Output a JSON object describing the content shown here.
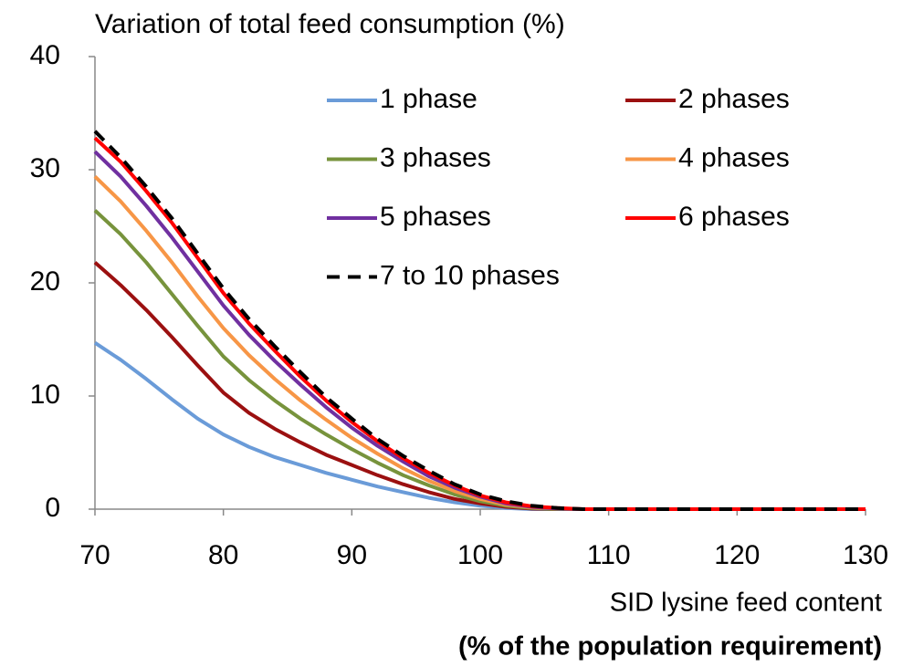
{
  "chart_data": {
    "type": "line",
    "title": "Variation of total feed consumption (%)",
    "xlabel": [
      "SID lysine  feed content",
      "(% of the population requirement)"
    ],
    "x": [
      70,
      72,
      74,
      76,
      78,
      80,
      82,
      84,
      86,
      88,
      90,
      92,
      94,
      96,
      98,
      100,
      102,
      104,
      106,
      108,
      110,
      115,
      120,
      125,
      130
    ],
    "xlim": [
      70,
      130
    ],
    "xticks": [
      70,
      80,
      90,
      100,
      110,
      120,
      130
    ],
    "ylim": [
      0,
      40
    ],
    "yticks": [
      0,
      10,
      20,
      30,
      40
    ],
    "legend": "top-right",
    "series": [
      {
        "name": "1 phase",
        "color": "#6a9bd8",
        "dashed": false,
        "values": [
          14.7,
          13.2,
          11.5,
          9.7,
          8.0,
          6.6,
          5.5,
          4.6,
          3.9,
          3.2,
          2.6,
          2.0,
          1.5,
          1.0,
          0.6,
          0.3,
          0.1,
          0,
          0,
          0,
          0,
          0,
          0,
          0,
          0
        ]
      },
      {
        "name": "2 phases",
        "color": "#9b1010",
        "dashed": false,
        "values": [
          21.8,
          19.8,
          17.6,
          15.2,
          12.7,
          10.3,
          8.5,
          7.1,
          5.9,
          4.8,
          3.9,
          3.0,
          2.2,
          1.5,
          0.9,
          0.5,
          0.2,
          0.05,
          0,
          0,
          0,
          0,
          0,
          0,
          0
        ]
      },
      {
        "name": "3 phases",
        "color": "#77933c",
        "dashed": false,
        "values": [
          26.4,
          24.3,
          21.8,
          19.0,
          16.2,
          13.5,
          11.4,
          9.6,
          8.0,
          6.6,
          5.3,
          4.1,
          3.0,
          2.1,
          1.3,
          0.7,
          0.3,
          0.1,
          0,
          0,
          0,
          0,
          0,
          0,
          0
        ]
      },
      {
        "name": "4 phases",
        "color": "#f79646",
        "dashed": false,
        "values": [
          29.4,
          27.2,
          24.6,
          21.8,
          18.8,
          16.0,
          13.6,
          11.5,
          9.6,
          7.9,
          6.3,
          4.9,
          3.6,
          2.5,
          1.6,
          0.9,
          0.4,
          0.15,
          0.05,
          0,
          0,
          0,
          0,
          0,
          0
        ]
      },
      {
        "name": "5 phases",
        "color": "#7030a0",
        "dashed": false,
        "values": [
          31.6,
          29.4,
          26.8,
          24.0,
          21.0,
          18.0,
          15.4,
          13.1,
          11.0,
          9.0,
          7.2,
          5.6,
          4.2,
          2.9,
          1.9,
          1.1,
          0.5,
          0.2,
          0.05,
          0,
          0,
          0,
          0,
          0,
          0
        ]
      },
      {
        "name": "6 phases",
        "color": "#ff0000",
        "dashed": false,
        "values": [
          32.8,
          30.7,
          28.1,
          25.3,
          22.2,
          19.1,
          16.4,
          14.0,
          11.7,
          9.6,
          7.7,
          6.0,
          4.5,
          3.2,
          2.1,
          1.2,
          0.6,
          0.25,
          0.1,
          0,
          0,
          0,
          0,
          0,
          0
        ]
      },
      {
        "name": "7 to 10 phases",
        "color": "#000000",
        "dashed": true,
        "values": [
          33.4,
          31.1,
          28.5,
          25.7,
          22.6,
          19.5,
          16.8,
          14.4,
          12.1,
          9.9,
          8.0,
          6.2,
          4.7,
          3.4,
          2.2,
          1.3,
          0.7,
          0.3,
          0.1,
          0,
          0,
          0,
          0,
          0,
          0
        ]
      }
    ]
  }
}
